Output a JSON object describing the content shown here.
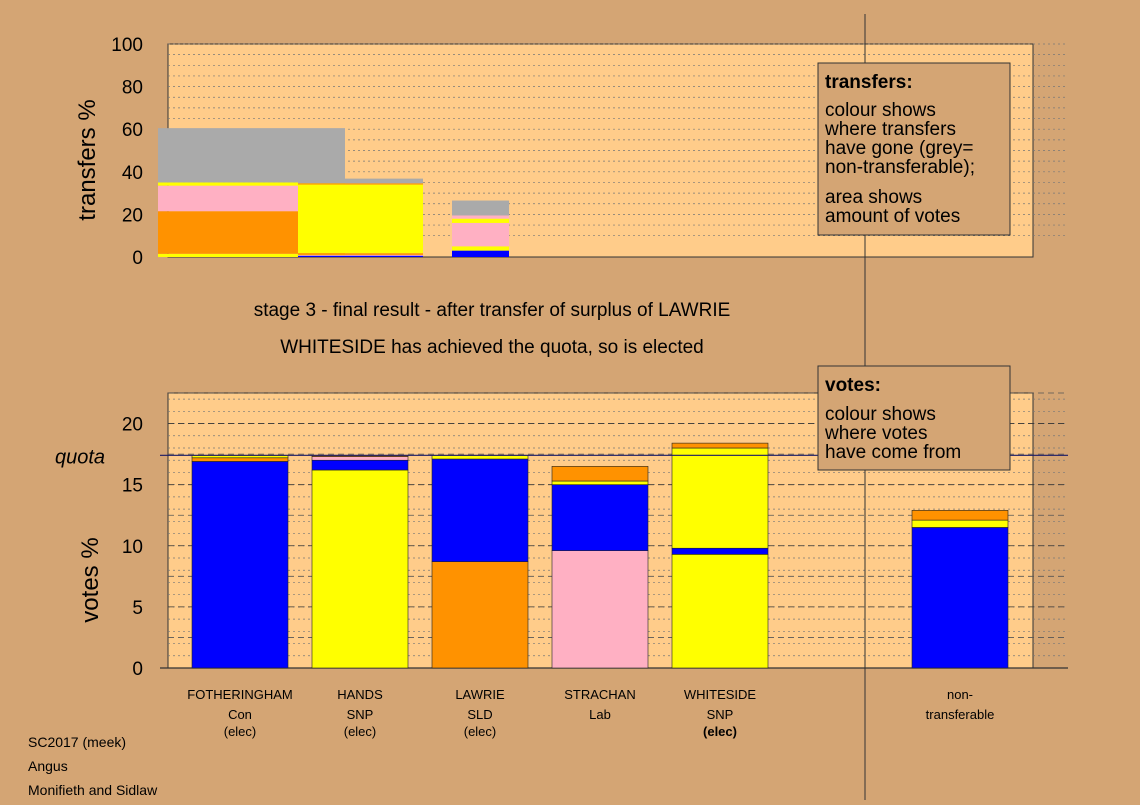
{
  "colors": {
    "background": "#d4a574",
    "plot_area": "#ffcc8a",
    "Con": "#0000ff",
    "SNP": "#ffff00",
    "SLD": "#ff9200",
    "Lab": "#ffb0c3",
    "nontransferable": "#aaaaaa"
  },
  "captions": {
    "stage": "stage 3 - final result - after transfer of surplus of LAWRIE",
    "result": "WHITESIDE has achieved the quota, so is elected"
  },
  "footer": {
    "election": "SC2017 (meek)",
    "council": "Angus",
    "ward": "Monifieth and Sidlaw"
  },
  "legend_transfers": {
    "title": "transfers:",
    "text1": [
      "colour shows",
      "where transfers",
      "have gone (grey=",
      "non-transferable);"
    ],
    "text2": [
      "area shows",
      "amount of votes"
    ]
  },
  "legend_votes": {
    "title": "votes:",
    "text1": [
      "colour shows",
      "where votes",
      "have come from"
    ]
  },
  "chart_data": [
    {
      "type": "bar",
      "name": "transfers",
      "ylabel": "transfers %",
      "ylim": [
        0,
        100
      ],
      "yticks": [
        0,
        20,
        40,
        60,
        80,
        100
      ],
      "grid": "dotted",
      "bars": [
        {
          "candidate": "FOTHERINGHAM",
          "segments": [
            {
              "party": "SNP",
              "value": 1.5
            },
            {
              "party": "SLD",
              "value": 20
            },
            {
              "party": "Lab",
              "value": 12
            },
            {
              "party": "SNP",
              "value": 1.5
            },
            {
              "party": "nontransferable",
              "value": 25.5
            }
          ]
        },
        {
          "candidate": "HANDS",
          "segments": [
            {
              "party": "Con",
              "value": 0.6
            },
            {
              "party": "Lab",
              "value": 0.4
            },
            {
              "party": "SLD",
              "value": 0.8
            },
            {
              "party": "SNP",
              "value": 32.2
            },
            {
              "party": "SLD",
              "value": 0.6
            },
            {
              "party": "nontransferable",
              "value": 2.2
            }
          ]
        },
        {
          "candidate": "LAWRIE",
          "segments": [
            {
              "party": "Con",
              "value": 3
            },
            {
              "party": "SNP",
              "value": 2
            },
            {
              "party": "Lab",
              "value": 11
            },
            {
              "party": "SNP",
              "value": 2
            },
            {
              "party": "Lab",
              "value": 1.5
            },
            {
              "party": "nontransferable",
              "value": 7
            }
          ]
        }
      ]
    },
    {
      "type": "bar",
      "name": "votes",
      "ylabel": "votes %",
      "ylim": [
        0,
        22.5
      ],
      "yticks": [
        0,
        5,
        10,
        15,
        20
      ],
      "quota": 17.4,
      "quota_label": "quota",
      "grid": "dashed",
      "candidates": [
        {
          "name": "FOTHERINGHAM",
          "party": "Con",
          "status": "(elec)",
          "bold_status": false,
          "segments": [
            {
              "party": "Con",
              "value": 16.9
            },
            {
              "party": "SLD",
              "value": 0.3
            },
            {
              "party": "SNP",
              "value": 0.2
            }
          ]
        },
        {
          "name": "HANDS",
          "party": "SNP",
          "status": "(elec)",
          "bold_status": false,
          "segments": [
            {
              "party": "SNP",
              "value": 16.2
            },
            {
              "party": "Con",
              "value": 0.8
            },
            {
              "party": "Lab",
              "value": 0.3
            },
            {
              "party": "SLD",
              "value": 0.1
            }
          ]
        },
        {
          "name": "LAWRIE",
          "party": "SLD",
          "status": "(elec)",
          "bold_status": false,
          "segments": [
            {
              "party": "SLD",
              "value": 8.7
            },
            {
              "party": "Con",
              "value": 8.4
            },
            {
              "party": "SNP",
              "value": 0.3
            }
          ]
        },
        {
          "name": "STRACHAN",
          "party": "Lab",
          "status": "",
          "bold_status": false,
          "segments": [
            {
              "party": "Lab",
              "value": 9.6
            },
            {
              "party": "Con",
              "value": 5.4
            },
            {
              "party": "SNP",
              "value": 0.3
            },
            {
              "party": "SLD",
              "value": 1.2
            }
          ]
        },
        {
          "name": "WHITESIDE",
          "party": "SNP",
          "status": "(elec)",
          "bold_status": true,
          "segments": [
            {
              "party": "SNP",
              "value": 9.3
            },
            {
              "party": "Con",
              "value": 0.5
            },
            {
              "party": "SNP",
              "value": 8.2
            },
            {
              "party": "SLD",
              "value": 0.4
            }
          ]
        },
        {
          "name": "non-",
          "party": "transferable",
          "status": "",
          "bold_status": false,
          "gap_before": true,
          "segments": [
            {
              "party": "Con",
              "value": 11.5
            },
            {
              "party": "SNP",
              "value": 0.6
            },
            {
              "party": "SLD",
              "value": 0.8
            }
          ]
        }
      ]
    }
  ]
}
